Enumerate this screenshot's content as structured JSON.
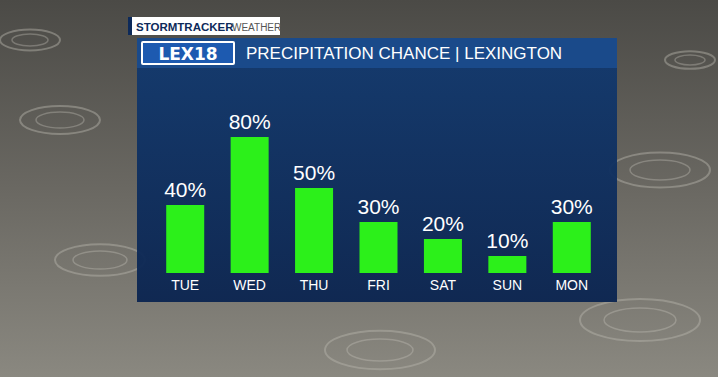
{
  "chart_data": {
    "type": "bar",
    "title": "PRECIPITATION CHANCE | LEXINGTON",
    "annotations": [
      "STORMTRACKER",
      "WEATHER",
      "LEX18"
    ],
    "categories": [
      "TUE",
      "WED",
      "THU",
      "FRI",
      "SAT",
      "SUN",
      "MON"
    ],
    "values": [
      40,
      80,
      50,
      30,
      20,
      10,
      30
    ],
    "value_labels": [
      "40%",
      "80%",
      "50%",
      "30%",
      "20%",
      "10%",
      "30%"
    ],
    "color": "#2cf01a",
    "ylim": [
      0,
      100
    ],
    "grid": false,
    "data_labels": true,
    "tick_labels": "x"
  }
}
